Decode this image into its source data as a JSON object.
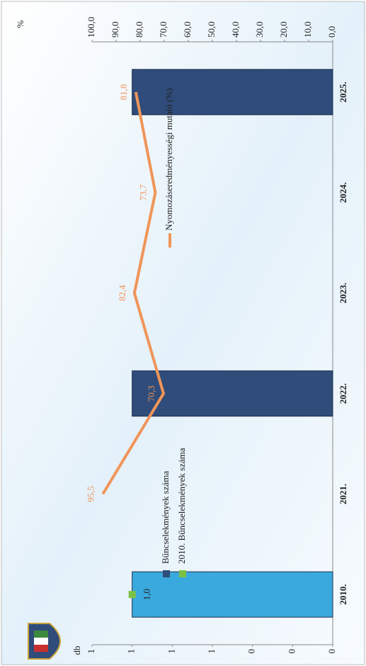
{
  "chart_data": {
    "type": "combo",
    "categories": [
      "2010.",
      "2021.",
      "2022.",
      "2023.",
      "2024.",
      "2025."
    ],
    "series": [
      {
        "name": "Bűncselekmények száma",
        "type": "bar",
        "color": "#2f4c7a",
        "values": [
          null,
          null,
          1,
          null,
          null,
          1
        ]
      },
      {
        "name": "2010. Bűncselekmények száma",
        "type": "bar",
        "color": "#3aa9de",
        "marker_color": "#7cc242",
        "values": [
          1,
          null,
          null,
          null,
          null,
          null
        ],
        "value_labels": [
          "1,0",
          null,
          null,
          null,
          null,
          null
        ]
      },
      {
        "name": "Nyomozáseredményességi mutató (%)",
        "type": "line",
        "axis": "y2",
        "color": "#f0955a",
        "values": [
          null,
          95.5,
          70.3,
          82.4,
          73.7,
          81.8
        ],
        "value_labels": [
          null,
          "95,5",
          "70,3",
          "82,4",
          "73,7",
          "81,8"
        ]
      }
    ],
    "ylabel": "db",
    "ylim": [
      0,
      1.2
    ],
    "yticks": [
      {
        "value": 0,
        "label": "0"
      },
      {
        "value": 0.2,
        "label": "0"
      },
      {
        "value": 0.4,
        "label": "0"
      },
      {
        "value": 0.6,
        "label": "1"
      },
      {
        "value": 0.8,
        "label": "1"
      },
      {
        "value": 1,
        "label": "1"
      },
      {
        "value": 1.2,
        "label": "1"
      }
    ],
    "y2label": "%",
    "y2lim": [
      0,
      100
    ],
    "y2ticks": [
      {
        "value": 0,
        "label": "0,0"
      },
      {
        "value": 10,
        "label": "10,0"
      },
      {
        "value": 20,
        "label": "20,0"
      },
      {
        "value": 30,
        "label": "30,0"
      },
      {
        "value": 40,
        "label": "40,0"
      },
      {
        "value": 50,
        "label": "50,0"
      },
      {
        "value": 60,
        "label": "60,0"
      },
      {
        "value": 70,
        "label": "70,0"
      },
      {
        "value": 80,
        "label": "80,0"
      },
      {
        "value": 90,
        "label": "90,0"
      },
      {
        "value": 100,
        "label": "100,0"
      }
    ]
  }
}
